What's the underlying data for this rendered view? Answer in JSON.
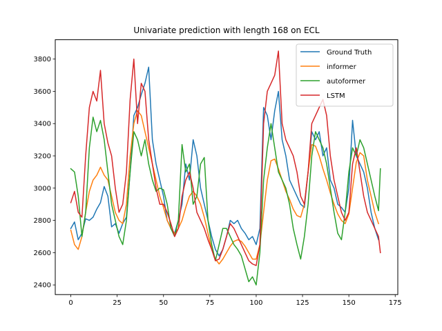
{
  "chart_data": {
    "type": "line",
    "title": "Univariate prediction with length 168 on ECL",
    "xlabel": "",
    "ylabel": "",
    "xlim": [
      -8.4,
      176.4
    ],
    "ylim": [
      2340,
      3920
    ],
    "xticks": [
      0,
      25,
      50,
      75,
      100,
      125,
      150,
      175
    ],
    "yticks": [
      2400,
      2600,
      2800,
      3000,
      3200,
      3400,
      3600,
      3800
    ],
    "grid": false,
    "legend_position": "top-right",
    "series": [
      {
        "name": "Ground Truth",
        "color": "#1f77b4",
        "x": [
          0,
          2,
          4,
          6,
          8,
          10,
          12,
          14,
          16,
          18,
          20,
          22,
          24,
          26,
          28,
          30,
          32,
          34,
          36,
          38,
          40,
          42,
          44,
          46,
          48,
          50,
          52,
          54,
          56,
          58,
          60,
          62,
          64,
          66,
          68,
          70,
          72,
          74,
          76,
          78,
          80,
          82,
          84,
          86,
          88,
          90,
          92,
          94,
          96,
          98,
          100,
          102,
          104,
          106,
          108,
          110,
          112,
          114,
          116,
          118,
          120,
          122,
          124,
          126,
          128,
          130,
          132,
          134,
          136,
          138,
          140,
          142,
          144,
          146,
          148,
          150,
          152,
          154,
          156,
          158,
          160,
          162,
          164,
          166
        ],
        "values": [
          2750,
          2790,
          2680,
          2720,
          2810,
          2800,
          2820,
          2870,
          2910,
          3010,
          2950,
          2760,
          2780,
          2720,
          2780,
          2820,
          3100,
          3450,
          3500,
          3580,
          3650,
          3750,
          3300,
          3150,
          3050,
          2950,
          2800,
          2750,
          2720,
          2800,
          2900,
          3150,
          3050,
          3300,
          3200,
          3000,
          2900,
          2800,
          2700,
          2620,
          2580,
          2620,
          2700,
          2800,
          2780,
          2800,
          2750,
          2720,
          2680,
          2700,
          2650,
          2750,
          3500,
          3450,
          3300,
          3480,
          3600,
          3300,
          3200,
          3050,
          3000,
          2950,
          2900,
          2880,
          3100,
          3350,
          3300,
          3350,
          3200,
          3250,
          3050,
          3000,
          2900,
          2880,
          2850,
          3000,
          3420,
          3200,
          3150,
          3100,
          3000,
          2850,
          2750,
          2680
        ]
      },
      {
        "name": "informer",
        "color": "#ff7f0e",
        "x": [
          0,
          2,
          4,
          6,
          8,
          10,
          12,
          14,
          16,
          18,
          20,
          22,
          24,
          26,
          28,
          30,
          32,
          34,
          36,
          38,
          40,
          42,
          44,
          46,
          48,
          50,
          52,
          54,
          56,
          58,
          60,
          62,
          64,
          66,
          68,
          70,
          72,
          74,
          76,
          78,
          80,
          82,
          84,
          86,
          88,
          90,
          92,
          94,
          96,
          98,
          100,
          102,
          104,
          106,
          108,
          110,
          112,
          114,
          116,
          118,
          120,
          122,
          124,
          126,
          128,
          130,
          132,
          134,
          136,
          138,
          140,
          142,
          144,
          146,
          148,
          150,
          152,
          154,
          156,
          158,
          160,
          162,
          164,
          166
        ],
        "values": [
          2740,
          2650,
          2620,
          2700,
          2850,
          2980,
          3050,
          3080,
          3130,
          3080,
          3050,
          2950,
          2850,
          2800,
          2780,
          2900,
          3200,
          3400,
          3480,
          3450,
          3350,
          3250,
          3150,
          3050,
          2950,
          2880,
          2800,
          2750,
          2720,
          2750,
          2800,
          2880,
          2950,
          2980,
          2950,
          2900,
          2820,
          2720,
          2620,
          2560,
          2530,
          2560,
          2600,
          2640,
          2670,
          2680,
          2670,
          2640,
          2600,
          2560,
          2560,
          2650,
          2850,
          3050,
          3170,
          3180,
          3120,
          3050,
          2980,
          2930,
          2870,
          2830,
          2820,
          2900,
          3100,
          3270,
          3260,
          3200,
          3120,
          3050,
          2970,
          2900,
          2840,
          2800,
          2780,
          2840,
          3000,
          3160,
          3220,
          3200,
          3050,
          2950,
          2850,
          2780
        ]
      },
      {
        "name": "autoformer",
        "color": "#2ca02c",
        "x": [
          0,
          2,
          4,
          6,
          8,
          10,
          12,
          14,
          16,
          18,
          20,
          22,
          24,
          26,
          28,
          30,
          32,
          34,
          36,
          38,
          40,
          42,
          44,
          46,
          48,
          50,
          52,
          54,
          56,
          58,
          60,
          62,
          64,
          66,
          68,
          70,
          72,
          74,
          76,
          78,
          80,
          82,
          84,
          86,
          88,
          90,
          92,
          94,
          96,
          98,
          100,
          102,
          104,
          106,
          108,
          110,
          112,
          114,
          116,
          118,
          120,
          122,
          124,
          126,
          128,
          130,
          132,
          134,
          136,
          138,
          140,
          142,
          144,
          146,
          148,
          150,
          152,
          154,
          156,
          158,
          160,
          162,
          164,
          166,
          167
        ],
        "values": [
          3120,
          3100,
          2950,
          2700,
          2850,
          3250,
          3440,
          3350,
          3420,
          3300,
          3100,
          2900,
          2800,
          2700,
          2650,
          2800,
          3100,
          3350,
          3300,
          3200,
          3300,
          3150,
          3050,
          2980,
          3000,
          2990,
          2900,
          2750,
          2700,
          2800,
          3270,
          3100,
          3150,
          2900,
          2950,
          3150,
          3190,
          2800,
          2650,
          2550,
          2650,
          2750,
          2750,
          2700,
          2650,
          2620,
          2580,
          2500,
          2420,
          2450,
          2400,
          2600,
          3050,
          3250,
          3400,
          3250,
          3100,
          3050,
          3000,
          2900,
          2750,
          2650,
          2560,
          2700,
          2900,
          3200,
          3350,
          3300,
          3250,
          3150,
          3000,
          2850,
          2720,
          2680,
          2850,
          3100,
          3250,
          3200,
          3300,
          3250,
          3150,
          3050,
          2950,
          2860,
          3120
        ]
      },
      {
        "name": "LSTM",
        "color": "#d62728",
        "x": [
          0,
          2,
          4,
          6,
          8,
          10,
          12,
          14,
          16,
          18,
          20,
          22,
          24,
          26,
          28,
          30,
          32,
          34,
          36,
          38,
          40,
          42,
          44,
          46,
          48,
          50,
          52,
          54,
          56,
          58,
          60,
          62,
          64,
          66,
          68,
          70,
          72,
          74,
          76,
          78,
          80,
          82,
          84,
          86,
          88,
          90,
          92,
          94,
          96,
          98,
          100,
          102,
          104,
          106,
          108,
          110,
          112,
          114,
          116,
          118,
          120,
          122,
          124,
          126,
          128,
          130,
          132,
          134,
          136,
          138,
          140,
          142,
          144,
          146,
          148,
          150,
          152,
          154,
          156,
          158,
          160,
          162,
          164,
          166,
          167
        ],
        "values": [
          2910,
          2980,
          2850,
          2820,
          3200,
          3500,
          3600,
          3540,
          3730,
          3400,
          3280,
          3200,
          3000,
          2850,
          2900,
          3100,
          3550,
          3800,
          3400,
          3650,
          3600,
          3300,
          3150,
          3000,
          2900,
          2900,
          2850,
          2780,
          2700,
          2750,
          2950,
          3050,
          3100,
          3000,
          2850,
          2800,
          2750,
          2680,
          2620,
          2550,
          2560,
          2620,
          2700,
          2780,
          2750,
          2700,
          2650,
          2600,
          2550,
          2530,
          2520,
          2650,
          3400,
          3600,
          3650,
          3700,
          3850,
          3400,
          3300,
          3250,
          3200,
          3100,
          2950,
          2900,
          3100,
          3400,
          3450,
          3500,
          3550,
          3450,
          3200,
          3050,
          2950,
          2850,
          2800,
          2850,
          3150,
          3250,
          3100,
          2950,
          2850,
          2800,
          2750,
          2700,
          2600
        ]
      }
    ]
  }
}
